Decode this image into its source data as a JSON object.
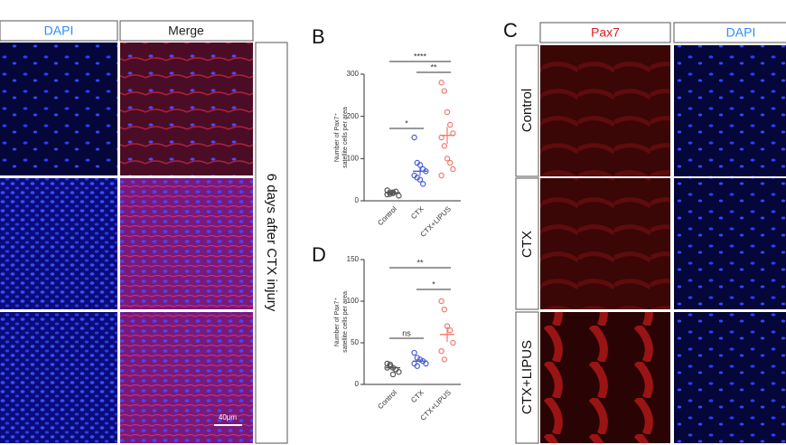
{
  "chart_data": [
    {
      "type": "dotplot",
      "panel": "B",
      "ylabel": [
        "Number of Pax7⁺",
        "satellite cells per area"
      ],
      "categories": [
        "Control",
        "CTX",
        "CTX+LIPUS"
      ],
      "colors": [
        "#555555",
        "#4a5fd6",
        "#f07a72"
      ],
      "groups": [
        {
          "values": [
            15,
            20,
            18,
            22,
            12,
            25,
            16,
            20
          ],
          "mean": 19,
          "sem": 2
        },
        {
          "values": [
            150,
            90,
            85,
            75,
            70,
            60,
            55,
            50,
            40
          ],
          "mean": 70,
          "sem": 10
        },
        {
          "values": [
            280,
            260,
            210,
            180,
            160,
            150,
            130,
            100,
            90,
            75,
            60
          ],
          "mean": 155,
          "sem": 20
        }
      ],
      "annotations": [
        {
          "text": "****",
          "between": [
            "Control",
            "CTX+LIPUS"
          ]
        },
        {
          "text": "**",
          "between": [
            "CTX",
            "CTX+LIPUS"
          ]
        },
        {
          "text": "*",
          "between": [
            "Control",
            "CTX"
          ]
        }
      ],
      "ylim": [
        0,
        300
      ],
      "yticks": [
        0,
        100,
        200,
        300
      ]
    },
    {
      "type": "dotplot",
      "panel": "D",
      "ylabel": [
        "Number of Pax7⁺",
        "satellite cells per area"
      ],
      "categories": [
        "Control",
        "CTX",
        "CTX+LIPUS"
      ],
      "colors": [
        "#555555",
        "#4a5fd6",
        "#f07a72"
      ],
      "groups": [
        {
          "values": [
            25,
            22,
            20,
            18,
            15,
            20,
            24,
            12
          ],
          "mean": 20,
          "sem": 2
        },
        {
          "values": [
            38,
            32,
            30,
            28,
            25,
            25,
            22
          ],
          "mean": 28,
          "sem": 2
        },
        {
          "values": [
            100,
            90,
            70,
            65,
            50,
            40,
            30
          ],
          "mean": 60,
          "sem": 9
        }
      ],
      "annotations": [
        {
          "text": "**",
          "between": [
            "Control",
            "CTX+LIPUS"
          ]
        },
        {
          "text": "*",
          "between": [
            "CTX",
            "CTX+LIPUS"
          ]
        },
        {
          "text": "ns",
          "between": [
            "Control",
            "CTX"
          ]
        }
      ],
      "ylim": [
        0,
        150
      ],
      "yticks": [
        0,
        50,
        100,
        150
      ]
    }
  ],
  "left_panel": {
    "columns": [
      "DAPI",
      "Merge"
    ],
    "side_label": "6 days after CTX injury",
    "scale_bar": "40μm"
  },
  "panel_c": {
    "letter": "C",
    "columns": [
      "Pax7",
      "DAPI"
    ],
    "rows": [
      "Control",
      "CTX",
      "CTX+LIPUS"
    ]
  }
}
